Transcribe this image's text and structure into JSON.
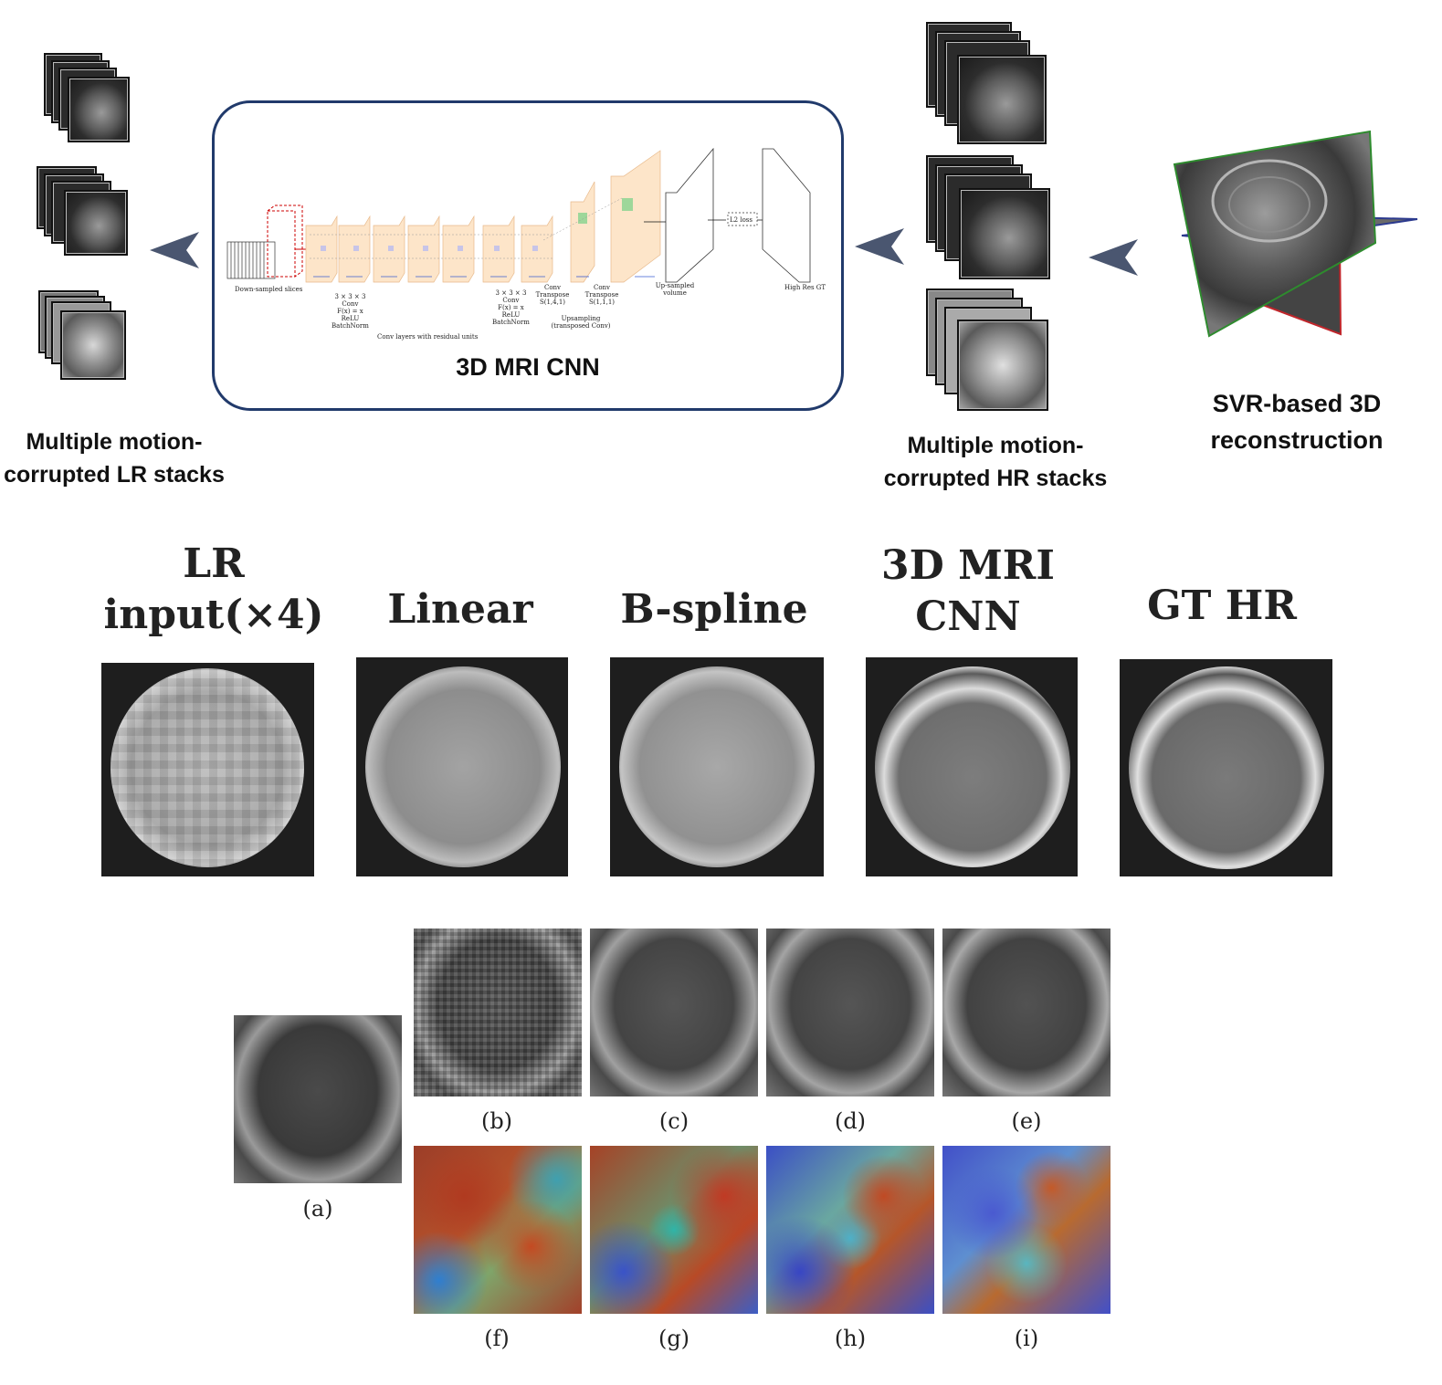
{
  "pipeline": {
    "lr_caption_line1": "Multiple motion-",
    "lr_caption_line2": "corrupted LR stacks",
    "cnn_title": "3D MRI CNN",
    "hr_caption_line1": "Multiple motion-",
    "hr_caption_line2": "corrupted HR stacks",
    "svr_caption_line1": "SVR-based 3D",
    "svr_caption_line2": "reconstruction",
    "arrow_color": "#4a5670",
    "box_border_color": "#213a6b"
  },
  "network": {
    "downsampled_label": "Down-sampled slices",
    "conv_block": [
      "3 × 3 × 3",
      "Conv",
      "F(x) = x",
      "ReLU",
      "BatchNorm"
    ],
    "conv_block2": [
      "3 × 3 × 3",
      "Conv",
      "F(x) = x",
      "ReLU",
      "BatchNorm"
    ],
    "conv_layers_label": "Conv layers with residual units",
    "upsample_label_1": "Conv Transpose S(1,4,1)",
    "upsample_label_2": "Conv Transpose S(1,1,1)",
    "upsampling_label": "Upsampling (transposed Conv)",
    "upsampled_volume_label": "Up-sampled volume",
    "loss_label": "L2 loss",
    "high_res_label": "High Res GT"
  },
  "comparison": {
    "titles": [
      {
        "line1": "LR",
        "line2": "input(×4)"
      },
      {
        "line1": "Linear",
        "line2": ""
      },
      {
        "line1": "B-spline",
        "line2": ""
      },
      {
        "line1": "3D MRI",
        "line2": "CNN"
      },
      {
        "line1": "GT HR",
        "line2": ""
      }
    ]
  },
  "subfigures": {
    "labels": [
      "(a)",
      "(b)",
      "(c)",
      "(d)",
      "(e)",
      "(f)",
      "(g)",
      "(h)",
      "(i)"
    ]
  }
}
